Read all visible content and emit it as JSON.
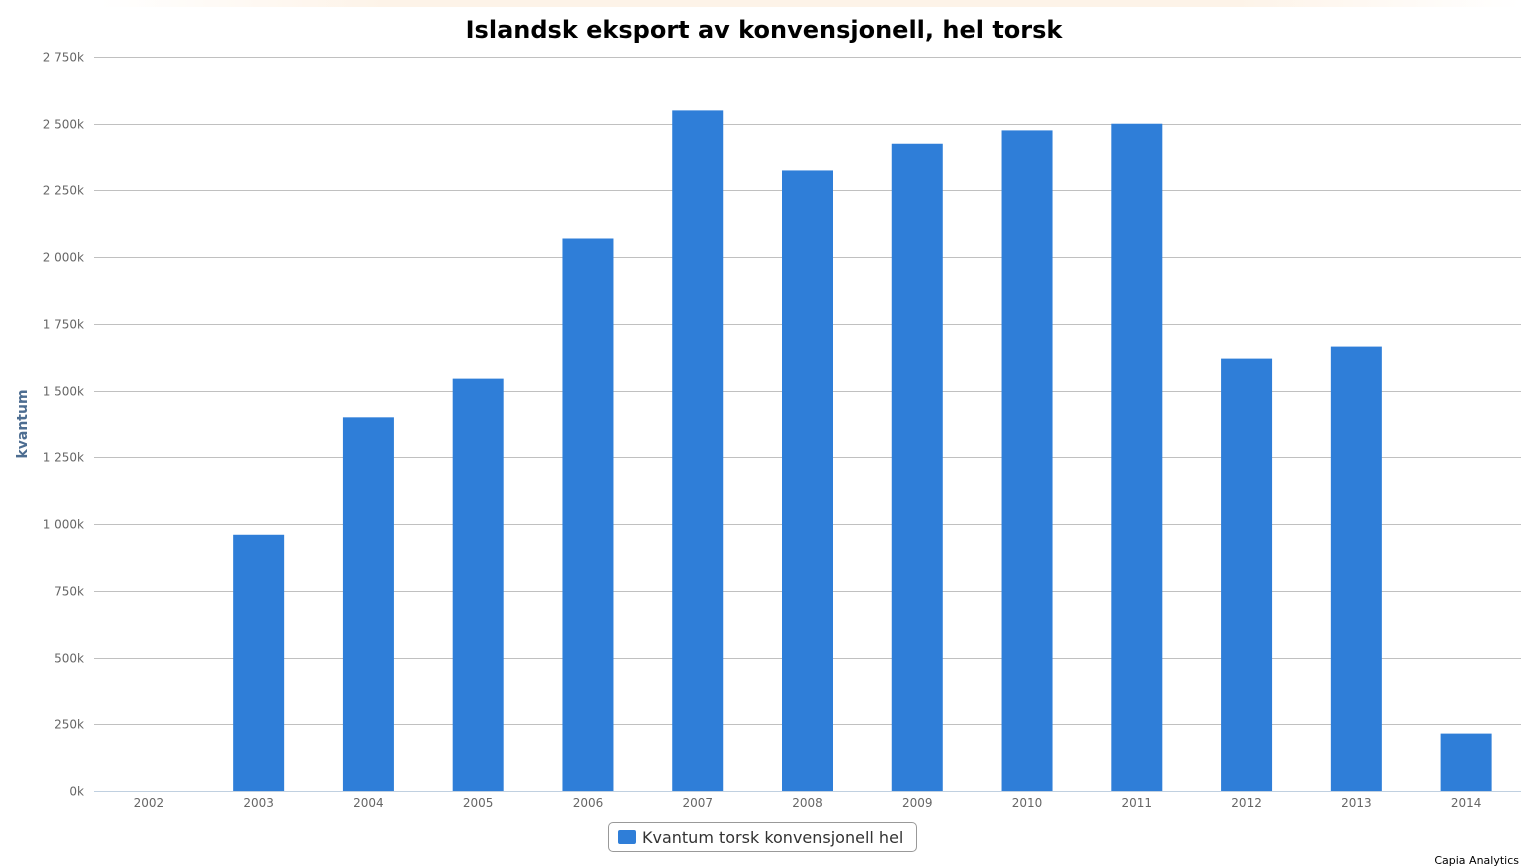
{
  "chart_data": {
    "type": "bar",
    "title": "Islandsk eksport av konvensjonell, hel torsk",
    "ylabel": "kvantum",
    "xlabel": "",
    "categories": [
      "2002",
      "2003",
      "2004",
      "2005",
      "2006",
      "2007",
      "2008",
      "2009",
      "2010",
      "2011",
      "2012",
      "2013",
      "2014"
    ],
    "series": [
      {
        "name": "Kvantum torsk konvensjonell hel",
        "color": "#2f7ed8",
        "values": [
          0,
          960000,
          1400000,
          1545000,
          2070000,
          2550000,
          2325000,
          2425000,
          2475000,
          2500000,
          1620000,
          1665000,
          215000
        ]
      }
    ],
    "ylim": [
      0,
      2750000
    ],
    "yticks": [
      {
        "value": 0,
        "label": "0k"
      },
      {
        "value": 250000,
        "label": "250k"
      },
      {
        "value": 500000,
        "label": "500k"
      },
      {
        "value": 750000,
        "label": "750k"
      },
      {
        "value": 1000000,
        "label": "1 000k"
      },
      {
        "value": 1250000,
        "label": "1 250k"
      },
      {
        "value": 1500000,
        "label": "1 500k"
      },
      {
        "value": 1750000,
        "label": "1 750k"
      },
      {
        "value": 2000000,
        "label": "2 000k"
      },
      {
        "value": 2250000,
        "label": "2 250k"
      },
      {
        "value": 2500000,
        "label": "2 500k"
      },
      {
        "value": 2750000,
        "label": "2 750k"
      }
    ],
    "grid": true,
    "legend_position": "bottom-center",
    "gridline_color": "#c0c0c0",
    "axis_color": "#c0d0e0"
  },
  "credit": "Capia Analytics"
}
